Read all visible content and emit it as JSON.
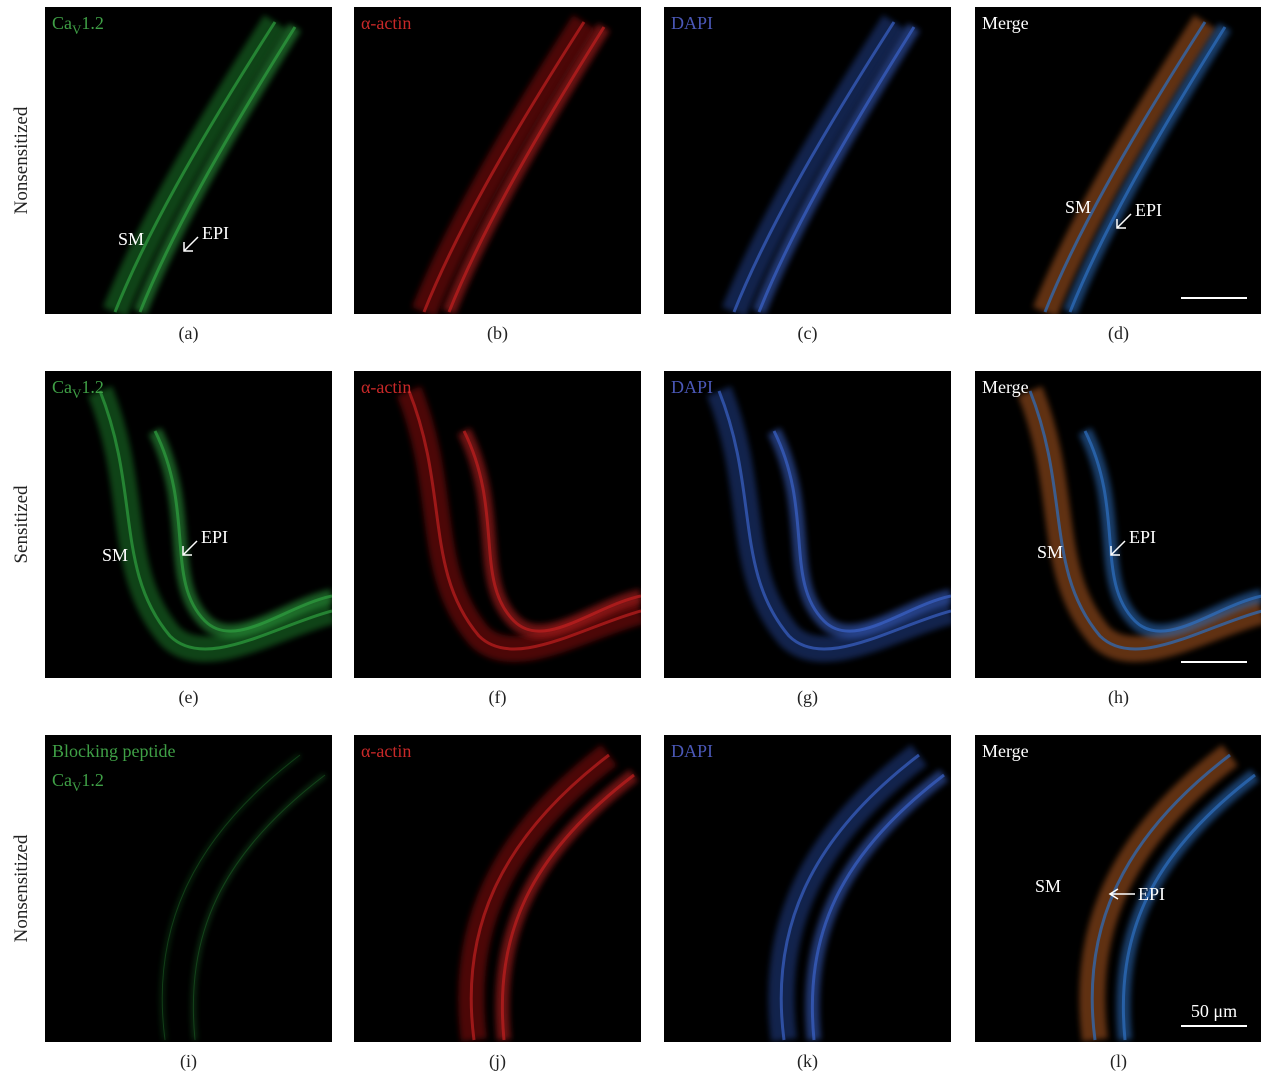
{
  "rows": [
    {
      "label": "Nonsensitized",
      "panels": [
        {
          "labels": [
            {
              "base": "Ca",
              "sub": "V",
              "tail": "1.2"
            }
          ],
          "annotations": [
            "SM",
            "EPI"
          ],
          "caption": "(a)"
        },
        {
          "labels": [
            "α-actin"
          ],
          "caption": "(b)"
        },
        {
          "labels": [
            "DAPI"
          ],
          "caption": "(c)"
        },
        {
          "labels": [
            "Merge"
          ],
          "annotations": [
            "SM",
            "EPI"
          ],
          "caption": "(d)"
        }
      ]
    },
    {
      "label": "Sensitized",
      "panels": [
        {
          "labels": [
            {
              "base": "Ca",
              "sub": "V",
              "tail": "1.2"
            }
          ],
          "annotations": [
            "SM",
            "EPI"
          ],
          "caption": "(e)"
        },
        {
          "labels": [
            "α-actin"
          ],
          "caption": "(f)"
        },
        {
          "labels": [
            "DAPI"
          ],
          "caption": "(g)"
        },
        {
          "labels": [
            "Merge"
          ],
          "annotations": [
            "SM",
            "EPI"
          ],
          "caption": "(h)"
        }
      ]
    },
    {
      "label": "Nonsensitized",
      "panels": [
        {
          "labels": [
            "Blocking peptide",
            {
              "base": "Ca",
              "sub": "V",
              "tail": "1.2"
            }
          ],
          "caption": "(i)"
        },
        {
          "labels": [
            "α-actin"
          ],
          "caption": "(j)"
        },
        {
          "labels": [
            "DAPI"
          ],
          "caption": "(k)"
        },
        {
          "labels": [
            "Merge"
          ],
          "annotations": [
            "SM",
            "EPI"
          ],
          "scale_label": "50 μm",
          "caption": "(l)"
        }
      ]
    }
  ]
}
